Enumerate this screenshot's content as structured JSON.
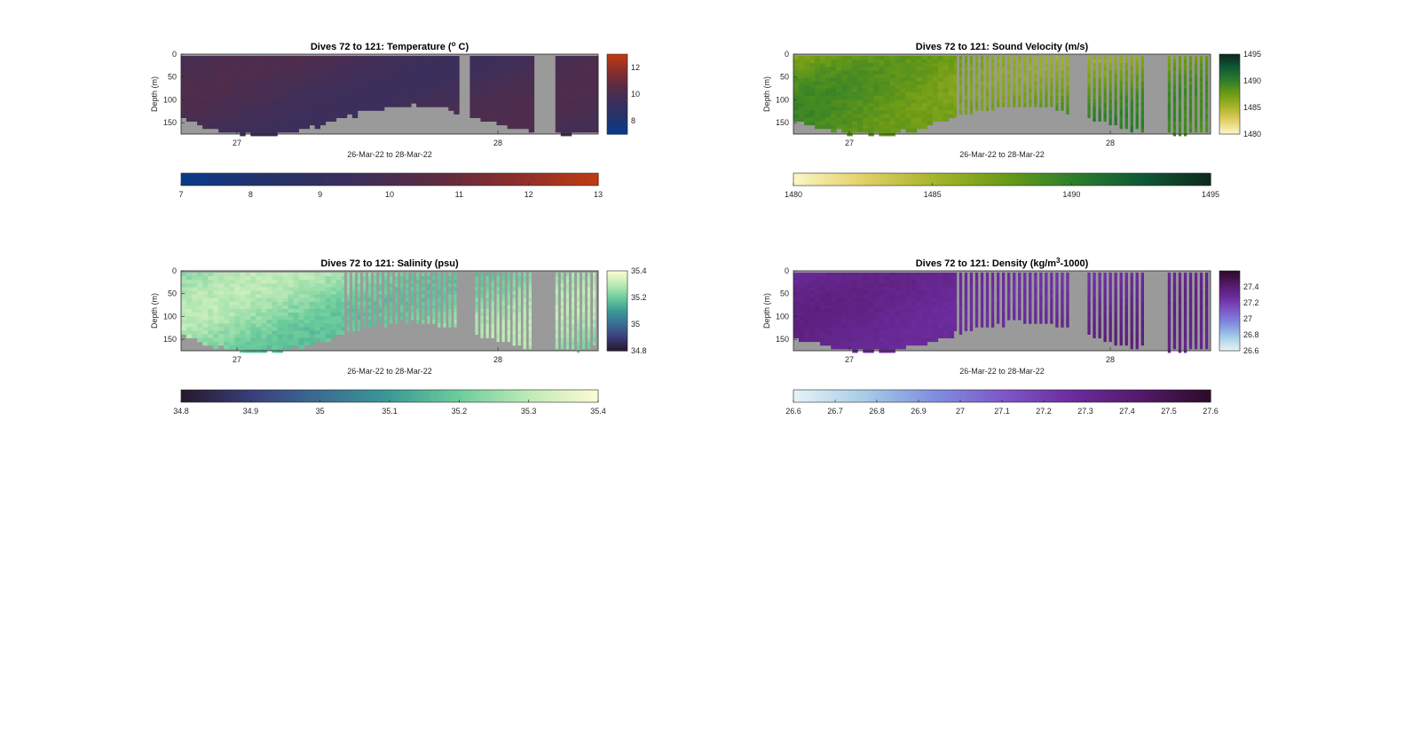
{
  "chart_data": [
    {
      "type": "heatmap",
      "title": "Dives 72 to 121: Temperature (°C)",
      "title_main": "Dives 72 to 121: Temperature (",
      "title_sup": "o",
      "title_end": " C)",
      "xlabel": "26-Mar-22 to 28-Mar-22",
      "ylabel": "Depth (m)",
      "xticks": [
        "27",
        "28"
      ],
      "yticks": [
        "0",
        "50",
        "100",
        "150"
      ],
      "ylim": [
        0,
        175
      ],
      "variable": "temperature",
      "colormap": [
        "#0b3a8c",
        "#24336a",
        "#3a2f5c",
        "#5a2c44",
        "#8a2e2c",
        "#c03a12"
      ],
      "clim": [
        7,
        13
      ],
      "colorbar_side_ticks": [
        "12",
        "10",
        "8"
      ],
      "colorbar_bottom_ticks": [
        "7",
        "8",
        "9",
        "10",
        "11",
        "12",
        "13"
      ],
      "typical_range": [
        9.3,
        10.3
      ]
    },
    {
      "type": "heatmap",
      "title": "Dives 72 to 121: Sound Velocity (m/s)",
      "title_main": "Dives 72 to 121: Sound Velocity (m/s)",
      "title_sup": "",
      "title_end": "",
      "xlabel": "26-Mar-22 to 28-Mar-22",
      "ylabel": "Depth (m)",
      "xticks": [
        "27",
        "28"
      ],
      "yticks": [
        "0",
        "50",
        "100",
        "150"
      ],
      "ylim": [
        0,
        175
      ],
      "variable": "sound_velocity",
      "colormap": [
        "#fbf6c4",
        "#e2cf66",
        "#a6b52a",
        "#6e9c16",
        "#2f7f2a",
        "#0f5a36",
        "#0e2a1c"
      ],
      "clim": [
        1480,
        1495
      ],
      "colorbar_side_ticks": [
        "1495",
        "1490",
        "1485",
        "1480"
      ],
      "colorbar_bottom_ticks": [
        "1480",
        "1485",
        "1490",
        "1495"
      ],
      "typical_range": [
        1486,
        1490
      ]
    },
    {
      "type": "heatmap",
      "title": "Dives 72 to 121: Salinity (psu)",
      "title_main": "Dives 72 to 121: Salinity (psu)",
      "title_sup": "",
      "title_end": "",
      "xlabel": "26-Mar-22 to 28-Mar-22",
      "ylabel": "Depth (m)",
      "xticks": [
        "27",
        "28"
      ],
      "yticks": [
        "0",
        "50",
        "100",
        "150"
      ],
      "ylim": [
        0,
        175
      ],
      "variable": "salinity",
      "colormap": [
        "#261a2e",
        "#3a3f7a",
        "#3a6e94",
        "#3a9a96",
        "#6ccc9c",
        "#bdeab6",
        "#fbfbd2"
      ],
      "clim": [
        34.8,
        35.4
      ],
      "colorbar_side_ticks": [
        "35.4",
        "35.2",
        "35",
        "34.8"
      ],
      "colorbar_bottom_ticks": [
        "34.8",
        "34.9",
        "35",
        "35.1",
        "35.2",
        "35.3",
        "35.4"
      ],
      "typical_range": [
        35.15,
        35.33
      ]
    },
    {
      "type": "heatmap",
      "title": "Dives 72 to 121: Density (kg/m³-1000)",
      "title_main": "Dives 72 to 121: Density (kg/m",
      "title_sup": "3",
      "title_end": "-1000)",
      "xlabel": "26-Mar-22 to 28-Mar-22",
      "ylabel": "Depth (m)",
      "xticks": [
        "27",
        "28"
      ],
      "yticks": [
        "0",
        "50",
        "100",
        "150"
      ],
      "ylim": [
        0,
        175
      ],
      "variable": "density",
      "colormap": [
        "#e6f2f6",
        "#a6cde6",
        "#7f8fe0",
        "#7e58c8",
        "#6c2c9e",
        "#531a6a",
        "#2e0b28"
      ],
      "clim": [
        26.6,
        27.6
      ],
      "colorbar_side_ticks": [
        "27.4",
        "27.2",
        "27",
        "26.8",
        "26.6"
      ],
      "colorbar_bottom_ticks": [
        "26.6",
        "26.7",
        "26.8",
        "26.9",
        "27",
        "27.1",
        "27.2",
        "27.3",
        "27.4",
        "27.5",
        "27.6"
      ],
      "typical_range": [
        27.22,
        27.36
      ]
    }
  ]
}
